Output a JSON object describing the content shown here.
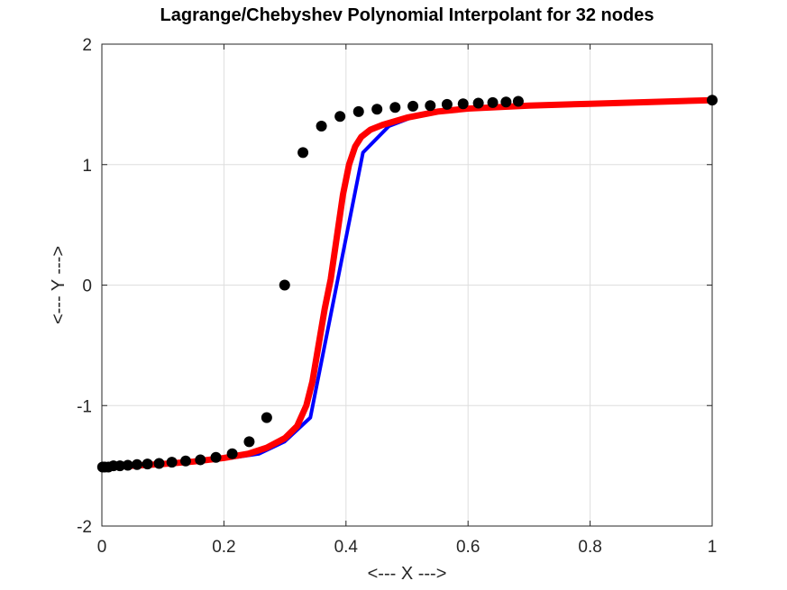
{
  "chart_data": {
    "type": "line",
    "title": "Lagrange/Chebyshev Polynomial Interpolant for 32 nodes",
    "xlabel": "<--- X --->",
    "ylabel": "<--- Y --->",
    "xlim": [
      0,
      1
    ],
    "ylim": [
      -2,
      2
    ],
    "xticks": [
      0,
      0.2,
      0.4,
      0.6,
      0.8,
      1
    ],
    "xtick_labels": [
      "0",
      "0.2",
      "0.4",
      "0.6",
      "0.8",
      "1"
    ],
    "yticks": [
      -2,
      -1,
      0,
      1,
      2
    ],
    "ytick_labels": [
      "-2",
      "-1",
      "0",
      "1",
      "2"
    ],
    "grid": true,
    "series": [
      {
        "color": "#0000ff",
        "style": "line",
        "x": [
          0,
          0.0024,
          0.0096,
          0.0215,
          0.038,
          0.0589,
          0.0839,
          0.1126,
          0.1449,
          0.1801,
          0.2179,
          0.2577,
          0.2991,
          0.3416,
          0.3847,
          0.4278,
          0.4704,
          0.5119,
          0.5518,
          0.5897,
          0.6251,
          0.6574,
          0.6865,
          0.7118,
          0.7333,
          0.7506,
          0.7637,
          0.7725,
          0.7769,
          0.8051,
          0.8385,
          0.8752,
          0.9122,
          0.9454,
          0.9712,
          0.9883,
          0.9974,
          1.0
        ],
        "y": [
          -1.51,
          -1.51,
          -1.51,
          -1.5,
          -1.5,
          -1.495,
          -1.49,
          -1.48,
          -1.465,
          -1.45,
          -1.43,
          -1.4,
          -1.3,
          -1.1,
          0.0,
          1.1,
          1.32,
          1.4,
          1.44,
          1.46,
          1.475,
          1.485,
          1.49,
          1.495,
          1.5,
          1.5,
          1.505,
          1.505,
          1.505,
          1.51,
          1.515,
          1.52,
          1.525,
          1.53,
          1.53,
          1.535,
          1.535,
          1.535
        ]
      },
      {
        "color": "#ff0000",
        "style": "line",
        "x": [
          0,
          0.05,
          0.1,
          0.15,
          0.2,
          0.24,
          0.27,
          0.3,
          0.32,
          0.335,
          0.345,
          0.355,
          0.365,
          0.375,
          0.385,
          0.395,
          0.405,
          0.415,
          0.425,
          0.44,
          0.46,
          0.5,
          0.55,
          0.6,
          0.7,
          0.8,
          0.9,
          1.0
        ],
        "y": [
          -1.51,
          -1.5,
          -1.485,
          -1.465,
          -1.435,
          -1.4,
          -1.35,
          -1.27,
          -1.17,
          -1.0,
          -0.8,
          -0.5,
          -0.2,
          0.05,
          0.4,
          0.75,
          1.0,
          1.15,
          1.23,
          1.29,
          1.33,
          1.39,
          1.44,
          1.465,
          1.49,
          1.505,
          1.52,
          1.535
        ]
      },
      {
        "color": "#000000",
        "style": "markers",
        "x": [
          0.0012,
          0.0048,
          0.0107,
          0.019,
          0.0296,
          0.0425,
          0.0576,
          0.0747,
          0.0938,
          0.1147,
          0.1373,
          0.1614,
          0.1869,
          0.2136,
          0.2414,
          0.2701,
          0.2995,
          0.3295,
          0.3598,
          0.3902,
          0.4206,
          0.4508,
          0.4805,
          0.5097,
          0.5381,
          0.5656,
          0.5919,
          0.6169,
          0.6404,
          0.6623,
          0.6823,
          1.0
        ],
        "y": [
          -1.51,
          -1.51,
          -1.51,
          -1.5,
          -1.5,
          -1.495,
          -1.49,
          -1.485,
          -1.48,
          -1.47,
          -1.46,
          -1.45,
          -1.43,
          -1.4,
          -1.3,
          -1.1,
          0.0,
          1.1,
          1.32,
          1.4,
          1.44,
          1.46,
          1.475,
          1.485,
          1.49,
          1.5,
          1.505,
          1.51,
          1.515,
          1.52,
          1.525,
          1.535
        ]
      }
    ]
  }
}
